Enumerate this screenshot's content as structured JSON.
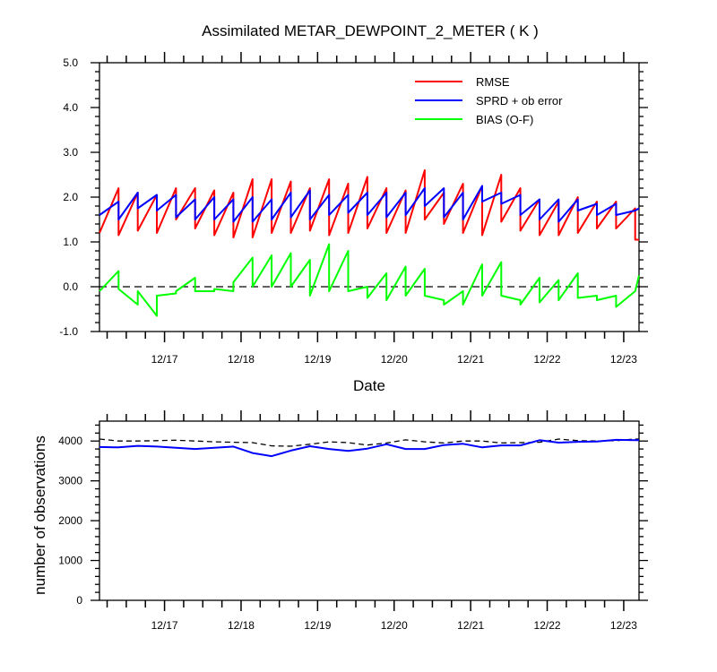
{
  "title": "Assimilated METAR_DEWPOINT_2_METER ( K )",
  "chart_data": [
    {
      "type": "line",
      "title": "Assimilated METAR_DEWPOINT_2_METER ( K )",
      "xlabel": "Date",
      "ylabel": "",
      "xlim": [
        16.15,
        23.2
      ],
      "ylim": [
        -1.0,
        5.0
      ],
      "x_ticks": [
        17,
        18,
        19,
        20,
        21,
        22,
        23
      ],
      "x_tick_labels": [
        "12/17",
        "12/18",
        "12/19",
        "12/20",
        "12/21",
        "12/22",
        "12/23"
      ],
      "y_ticks": [
        -1.0,
        0.0,
        1.0,
        2.0,
        3.0,
        4.0,
        5.0
      ],
      "y_tick_labels": [
        "-1.0",
        "0.0",
        "1.0",
        "2.0",
        "3.0",
        "4.0",
        "5.0"
      ],
      "reference_line": 0.0,
      "grid": false,
      "legend": "top-right",
      "series": [
        {
          "name": "RMSE",
          "color": "#ff0000",
          "x": [
            16.15,
            16.4,
            16.4,
            16.65,
            16.65,
            16.9,
            16.9,
            17.15,
            17.15,
            17.4,
            17.4,
            17.65,
            17.65,
            17.9,
            17.9,
            18.15,
            18.15,
            18.4,
            18.4,
            18.65,
            18.65,
            18.9,
            18.9,
            19.15,
            19.15,
            19.4,
            19.4,
            19.65,
            19.65,
            19.9,
            19.9,
            20.15,
            20.15,
            20.4,
            20.4,
            20.65,
            20.65,
            20.9,
            20.9,
            21.15,
            21.15,
            21.4,
            21.4,
            21.65,
            21.65,
            21.9,
            21.9,
            22.15,
            22.15,
            22.4,
            22.4,
            22.65,
            22.65,
            22.9,
            22.9,
            23.15,
            23.15,
            23.2
          ],
          "y": [
            1.2,
            2.2,
            1.15,
            2.1,
            1.25,
            2.05,
            1.2,
            2.2,
            1.5,
            2.2,
            1.3,
            2.15,
            1.15,
            2.1,
            1.1,
            2.4,
            1.1,
            2.4,
            1.2,
            2.35,
            1.2,
            2.2,
            1.25,
            2.4,
            1.15,
            2.3,
            1.2,
            2.45,
            1.3,
            2.2,
            1.2,
            2.15,
            1.2,
            2.6,
            1.5,
            2.1,
            1.4,
            2.3,
            1.2,
            2.25,
            1.15,
            2.5,
            1.45,
            2.2,
            1.25,
            1.95,
            1.15,
            1.9,
            1.15,
            2.0,
            1.2,
            1.9,
            1.3,
            1.9,
            1.3,
            1.75,
            1.05,
            1.05
          ]
        },
        {
          "name": "SPRD + ob error",
          "color": "#0000ff",
          "x": [
            16.15,
            16.4,
            16.4,
            16.65,
            16.65,
            16.9,
            16.9,
            17.15,
            17.15,
            17.4,
            17.4,
            17.65,
            17.65,
            17.9,
            17.9,
            18.15,
            18.15,
            18.4,
            18.4,
            18.65,
            18.65,
            18.9,
            18.9,
            19.15,
            19.15,
            19.4,
            19.4,
            19.65,
            19.65,
            19.9,
            19.9,
            20.15,
            20.15,
            20.4,
            20.4,
            20.65,
            20.65,
            20.9,
            20.9,
            21.15,
            21.15,
            21.4,
            21.4,
            21.65,
            21.65,
            21.9,
            21.9,
            22.15,
            22.15,
            22.4,
            22.4,
            22.65,
            22.65,
            22.9,
            22.9,
            23.15,
            23.2
          ],
          "y": [
            1.6,
            1.9,
            1.5,
            2.1,
            1.75,
            2.05,
            1.7,
            2.05,
            1.55,
            1.95,
            1.5,
            2.0,
            1.5,
            1.95,
            1.45,
            2.0,
            1.45,
            1.95,
            1.5,
            2.1,
            1.55,
            2.15,
            1.5,
            2.05,
            1.6,
            2.05,
            1.65,
            2.1,
            1.6,
            2.1,
            1.55,
            2.1,
            1.6,
            2.2,
            1.8,
            2.2,
            1.55,
            2.1,
            1.5,
            2.25,
            1.9,
            2.1,
            1.85,
            2.05,
            1.6,
            1.95,
            1.5,
            1.95,
            1.45,
            1.95,
            1.7,
            1.85,
            1.6,
            1.85,
            1.6,
            1.7,
            1.75
          ]
        },
        {
          "name": "BIAS (O-F)",
          "color": "#00ff00",
          "x": [
            16.15,
            16.4,
            16.4,
            16.65,
            16.65,
            16.9,
            16.9,
            17.15,
            17.15,
            17.4,
            17.4,
            17.65,
            17.65,
            17.9,
            17.9,
            18.15,
            18.15,
            18.4,
            18.4,
            18.65,
            18.65,
            18.9,
            18.9,
            19.15,
            19.15,
            19.4,
            19.4,
            19.65,
            19.65,
            19.9,
            19.9,
            20.15,
            20.15,
            20.4,
            20.4,
            20.65,
            20.65,
            20.9,
            20.9,
            21.15,
            21.15,
            21.4,
            21.4,
            21.65,
            21.65,
            21.9,
            21.9,
            22.15,
            22.15,
            22.4,
            22.4,
            22.65,
            22.65,
            22.9,
            22.9,
            23.15,
            23.2
          ],
          "y": [
            -0.1,
            0.35,
            -0.05,
            -0.4,
            -0.1,
            -0.65,
            -0.2,
            -0.15,
            -0.1,
            0.2,
            -0.1,
            -0.1,
            -0.05,
            -0.1,
            0.1,
            0.65,
            0.0,
            0.7,
            0.0,
            0.75,
            0.0,
            0.6,
            -0.2,
            0.95,
            -0.1,
            0.8,
            -0.1,
            0.0,
            -0.25,
            0.3,
            -0.3,
            0.45,
            -0.2,
            0.4,
            -0.2,
            -0.3,
            -0.4,
            -0.1,
            -0.4,
            0.5,
            -0.2,
            0.55,
            -0.2,
            -0.3,
            -0.4,
            0.2,
            -0.35,
            0.15,
            -0.3,
            0.3,
            -0.25,
            -0.2,
            -0.3,
            -0.2,
            -0.45,
            -0.1,
            0.25
          ]
        }
      ]
    },
    {
      "type": "line",
      "title": "",
      "xlabel": "",
      "ylabel": "number of observations",
      "xlim": [
        16.15,
        23.2
      ],
      "ylim": [
        0,
        4500
      ],
      "x_ticks": [
        17,
        18,
        19,
        20,
        21,
        22,
        23
      ],
      "x_tick_labels": [
        "12/17",
        "12/18",
        "12/19",
        "12/20",
        "12/21",
        "12/22",
        "12/23"
      ],
      "y_ticks": [
        0,
        1000,
        2000,
        3000,
        4000
      ],
      "y_tick_labels": [
        "0",
        "1000",
        "2000",
        "3000",
        "4000"
      ],
      "grid": false,
      "series": [
        {
          "color": "#000000",
          "style": "dashed",
          "x": [
            16.15,
            16.4,
            16.65,
            16.9,
            17.15,
            17.4,
            17.65,
            17.9,
            18.15,
            18.4,
            18.65,
            18.9,
            19.15,
            19.4,
            19.65,
            19.9,
            20.15,
            20.4,
            20.65,
            20.9,
            21.15,
            21.4,
            21.65,
            21.9,
            22.15,
            22.4,
            22.65,
            22.9,
            23.15,
            23.2
          ],
          "y": [
            4050,
            4000,
            4000,
            4010,
            4020,
            4000,
            3980,
            3970,
            3960,
            3880,
            3870,
            3920,
            3980,
            3960,
            3900,
            3950,
            4030,
            3980,
            3950,
            4000,
            4000,
            3950,
            3960,
            3970,
            4050,
            4010,
            4000,
            4010,
            4050,
            4050
          ]
        },
        {
          "color": "#0000ff",
          "style": "solid",
          "x": [
            16.15,
            16.4,
            16.65,
            16.9,
            17.15,
            17.4,
            17.65,
            17.9,
            18.15,
            18.4,
            18.65,
            18.9,
            19.15,
            19.4,
            19.65,
            19.9,
            20.15,
            20.4,
            20.65,
            20.9,
            21.15,
            21.4,
            21.65,
            21.9,
            22.15,
            22.4,
            22.65,
            22.9,
            23.15,
            23.2
          ],
          "y": [
            3850,
            3840,
            3880,
            3860,
            3830,
            3800,
            3830,
            3860,
            3700,
            3620,
            3760,
            3870,
            3800,
            3750,
            3810,
            3920,
            3800,
            3800,
            3900,
            3930,
            3840,
            3890,
            3890,
            4020,
            3960,
            3980,
            3990,
            4030,
            4020,
            4020
          ]
        }
      ]
    }
  ]
}
